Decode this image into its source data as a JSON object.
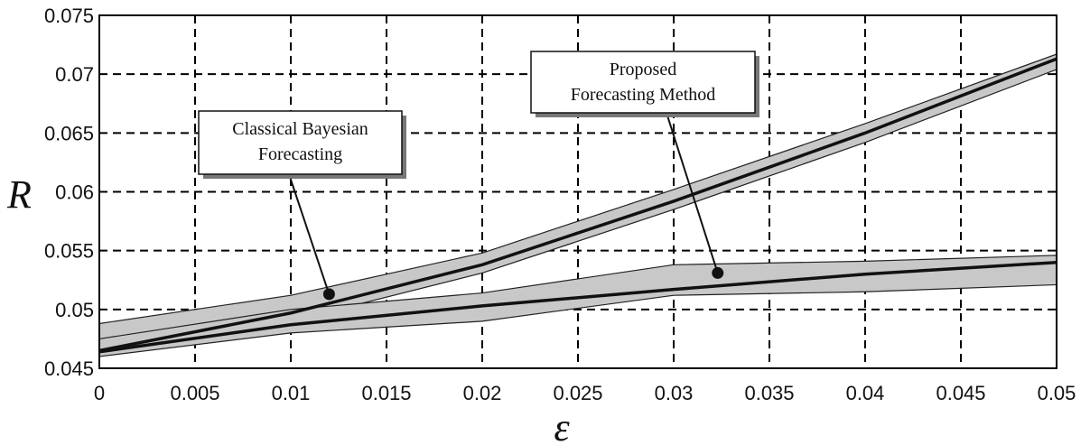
{
  "chart_data": {
    "type": "area",
    "xlabel": "ε",
    "ylabel": "R",
    "xlim": [
      0,
      0.05
    ],
    "ylim": [
      0.045,
      0.075
    ],
    "grid": true,
    "x_ticks": [
      "0",
      "0.005",
      "0.01",
      "0.015",
      "0.02",
      "0.025",
      "0.03",
      "0.035",
      "0.04",
      "0.045",
      "0.05"
    ],
    "y_ticks": [
      "0.045",
      "0.05",
      "0.055",
      "0.06",
      "0.065",
      "0.07",
      "0.075"
    ],
    "series": [
      {
        "name": "Classical Bayesian Forecasting",
        "x": [
          0,
          0.01,
          0.02,
          0.03,
          0.04,
          0.05
        ],
        "upper": [
          0.0488,
          0.0512,
          0.0548,
          0.0602,
          0.0658,
          0.0717
        ],
        "center": [
          0.0465,
          0.0497,
          0.0538,
          0.0592,
          0.065,
          0.0713
        ],
        "lower": [
          0.0462,
          0.049,
          0.0531,
          0.0585,
          0.0642,
          0.0704
        ]
      },
      {
        "name": "Proposed Forecasting Method",
        "x": [
          0,
          0.01,
          0.02,
          0.03,
          0.04,
          0.05
        ],
        "upper": [
          0.0475,
          0.05,
          0.0514,
          0.0538,
          0.0541,
          0.0546
        ],
        "center": [
          0.0464,
          0.0487,
          0.0503,
          0.0517,
          0.053,
          0.054
        ],
        "lower": [
          0.046,
          0.048,
          0.049,
          0.0512,
          0.0515,
          0.0521
        ]
      }
    ],
    "annotations": [
      {
        "lines": [
          "Classical Bayesian",
          "Forecasting"
        ],
        "points_to": [
          0.012,
          0.0513
        ]
      },
      {
        "lines": [
          "Proposed",
          "Forecasting Method"
        ],
        "points_to": [
          0.0323,
          0.0531
        ]
      }
    ],
    "colors": {
      "band": "#c8c8c8",
      "line": "#111111",
      "grid": "#000000"
    }
  }
}
